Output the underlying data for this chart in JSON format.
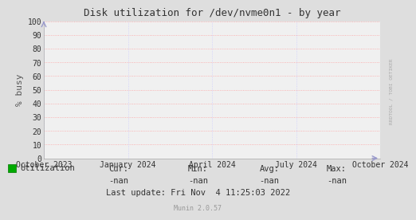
{
  "title": "Disk utilization for /dev/nvme0n1 - by year",
  "ylabel": "% busy",
  "ylim": [
    0,
    100
  ],
  "yticks": [
    0,
    10,
    20,
    30,
    40,
    50,
    60,
    70,
    80,
    90,
    100
  ],
  "x_tick_labels": [
    "October 2023",
    "January 2024",
    "April 2024",
    "July 2024",
    "October 2024"
  ],
  "bg_color": "#dedede",
  "plot_bg_color": "#f0f0f0",
  "grid_color": "#ff9999",
  "grid_color2": "#c8c8ff",
  "title_color": "#333333",
  "axis_label_color": "#555555",
  "tick_label_color": "#333333",
  "legend_label": "Utilization",
  "legend_color": "#00aa00",
  "cur_label": "Cur:",
  "cur_val": "-nan",
  "min_label": "Min:",
  "min_val": "-nan",
  "avg_label": "Avg:",
  "avg_val": "-nan",
  "max_label": "Max:",
  "max_val": "-nan",
  "last_update": "Last update: Fri Nov  4 11:25:03 2022",
  "munin_version": "Munin 2.0.57",
  "watermark": "RRDTOOL / TOBI OETIKER",
  "arrow_color": "#9999cc"
}
